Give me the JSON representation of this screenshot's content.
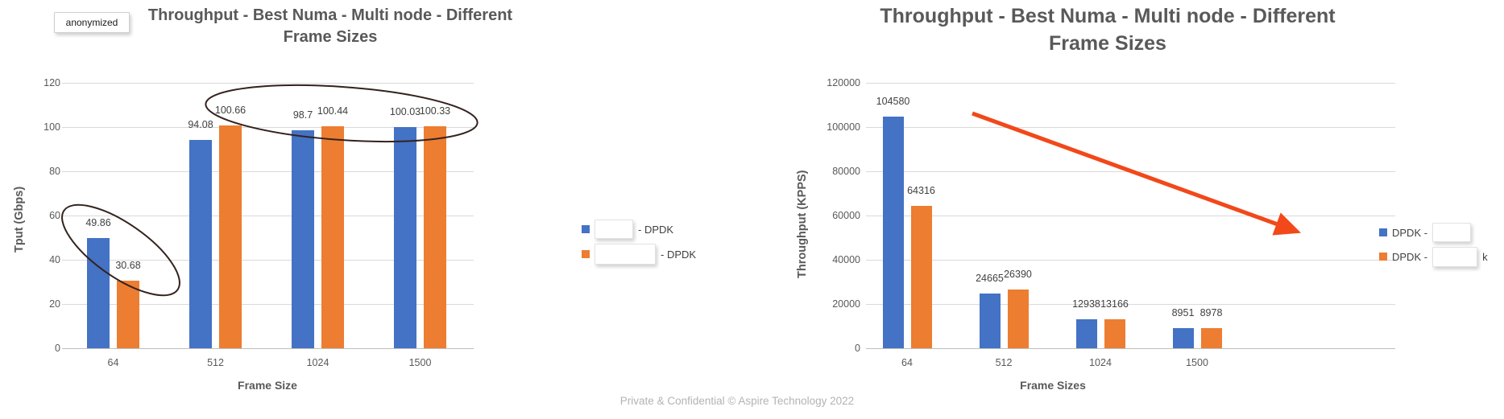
{
  "page": {
    "anonymized_box_label": "anonymized",
    "footer": "Private & Confidential © Aspire Technology 2022"
  },
  "chart_data": [
    {
      "type": "bar",
      "title": "Throughput - Best Numa - Multi node - Different Frame Sizes",
      "title_lines": [
        "Throughput - Best Numa - Multi node - Different",
        "Frame Sizes"
      ],
      "xlabel": "Frame Size",
      "ylabel": "Tput (Gbps)",
      "ylim": [
        0,
        120
      ],
      "yticks": [
        "0",
        "20",
        "40",
        "60",
        "80",
        "100",
        "120"
      ],
      "grid": true,
      "legend_position": "right",
      "categories": [
        "64",
        "512",
        "1024",
        "1500"
      ],
      "series": [
        {
          "name": "(anonymized) - DPDK",
          "color": "#4472C4",
          "values": [
            49.86,
            94.08,
            98.7,
            100.03
          ]
        },
        {
          "name": "(anonymized) - DPDK",
          "color": "#ED7D31",
          "values": [
            30.68,
            100.66,
            100.44,
            100.33
          ]
        }
      ],
      "value_labels": [
        "49.86",
        "94.08",
        "98.7",
        "100.03",
        "30.68",
        "100.66",
        "100.44",
        "100.33"
      ],
      "legend": [
        {
          "before_box": "",
          "masked": true,
          "after_box": "- DPDK"
        },
        {
          "before_box": "",
          "masked": true,
          "after_box": "- DPDK"
        }
      ],
      "annotations": [
        {
          "type": "ellipse",
          "note": "circles the 64-byte group (49.86 / 30.68)"
        },
        {
          "type": "ellipse",
          "note": "circles the ~100 Gbps tops of 512/1024/1500 groups"
        }
      ]
    },
    {
      "type": "bar",
      "title": "Throughput - Best Numa - Multi node - Different Frame Sizes",
      "title_lines": [
        "Throughput - Best Numa - Multi node - Different",
        "Frame Sizes"
      ],
      "xlabel": "Frame Sizes",
      "ylabel": "Throughput (KPPS)",
      "ylim": [
        0,
        120000
      ],
      "yticks": [
        "0",
        "20000",
        "40000",
        "60000",
        "80000",
        "100000",
        "120000"
      ],
      "grid": true,
      "legend_position": "right",
      "categories": [
        "64",
        "512",
        "1024",
        "1500"
      ],
      "series": [
        {
          "name": "DPDK - (anonymized)",
          "color": "#4472C4",
          "values": [
            104580,
            24665,
            12938,
            8951
          ]
        },
        {
          "name": "DPDK - (anonymized)",
          "color": "#ED7D31",
          "values": [
            64316,
            26390,
            13166,
            8978
          ]
        }
      ],
      "value_labels": [
        "104580",
        "24665",
        "12938",
        "8951",
        "64316",
        "26390",
        "13166",
        "8978"
      ],
      "legend": [
        {
          "before_box": "DPDK -",
          "masked": true,
          "after_box": ""
        },
        {
          "before_box": "DPDK -",
          "masked": true,
          "after_box": "k"
        }
      ],
      "annotations": [
        {
          "type": "arrow",
          "color": "#F2481A",
          "note": "declining trend arrow pointing down-right"
        }
      ]
    }
  ]
}
